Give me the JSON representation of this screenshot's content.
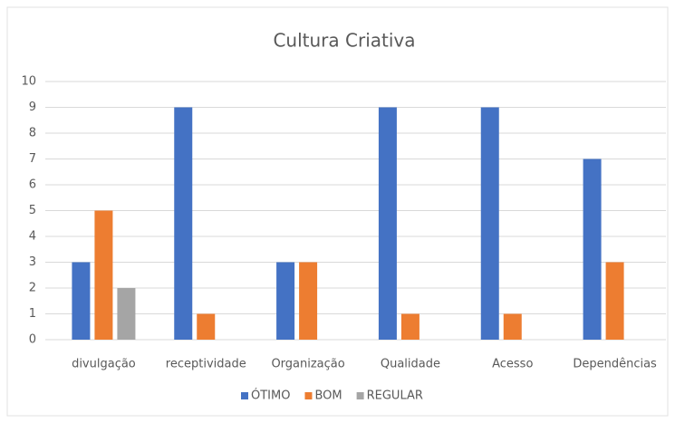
{
  "chart_data": {
    "type": "bar",
    "title": "Cultura Criativa",
    "categories": [
      "divulgação",
      "receptividade",
      "Organização",
      "Qualidade",
      "Acesso",
      "Dependências"
    ],
    "series": [
      {
        "name": "ÓTIMO",
        "color": "#4472c4",
        "values": [
          3,
          9,
          3,
          9,
          9,
          7
        ]
      },
      {
        "name": "BOM",
        "color": "#ed7d31",
        "values": [
          5,
          1,
          3,
          1,
          1,
          3
        ]
      },
      {
        "name": "REGULAR",
        "color": "#a5a5a5",
        "values": [
          2,
          0,
          0,
          0,
          0,
          0
        ]
      }
    ],
    "ylim": [
      0,
      10
    ],
    "yticks": [
      0,
      1,
      2,
      3,
      4,
      5,
      6,
      7,
      8,
      9,
      10
    ],
    "grid": true,
    "legend": "bottom"
  }
}
